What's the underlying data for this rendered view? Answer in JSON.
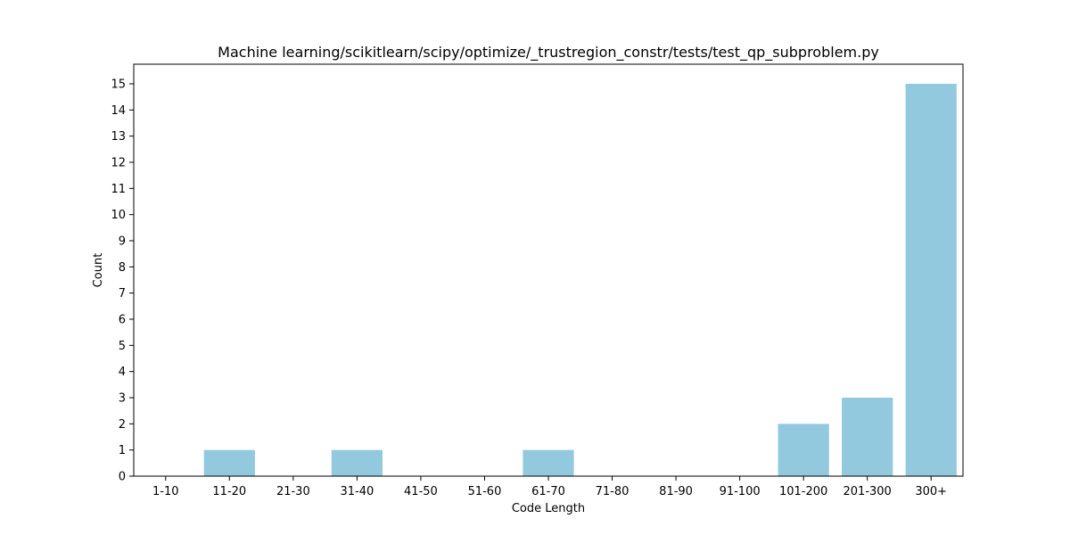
{
  "chart_data": {
    "type": "bar",
    "title": "Machine learning/scikitlearn/scipy/optimize/_trustregion_constr/tests/test_qp_subproblem.py",
    "xlabel": "Code Length",
    "ylabel": "Count",
    "categories": [
      "1-10",
      "11-20",
      "21-30",
      "31-40",
      "41-50",
      "51-60",
      "61-70",
      "71-80",
      "81-90",
      "91-100",
      "101-200",
      "201-300",
      "300+"
    ],
    "values": [
      0,
      1,
      0,
      1,
      0,
      0,
      1,
      0,
      0,
      0,
      2,
      3,
      15
    ],
    "ylim": [
      0,
      15.75
    ],
    "yticks": [
      0,
      1,
      2,
      3,
      4,
      5,
      6,
      7,
      8,
      9,
      10,
      11,
      12,
      13,
      14,
      15
    ],
    "bar_color": "#92c9de",
    "grid": false,
    "legend": "none"
  }
}
